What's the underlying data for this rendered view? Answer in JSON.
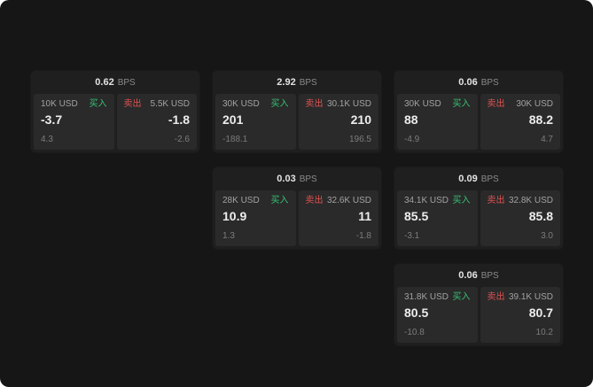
{
  "colors": {
    "background": "#161616",
    "card": "#1f1f1f",
    "panel": "#2a2a2a",
    "buy_accent": "#37c173",
    "sell_accent": "#e05252"
  },
  "cards": [
    {
      "bps": "0.62",
      "bps_label": "BPS",
      "buy": {
        "amount": "10K USD",
        "badge": "买入",
        "value": "-3.7",
        "sub": "4.3"
      },
      "sell": {
        "amount": "5.5K USD",
        "badge": "卖出",
        "value": "-1.8",
        "sub": "-2.6"
      }
    },
    {
      "bps": "2.92",
      "bps_label": "BPS",
      "buy": {
        "amount": "30K USD",
        "badge": "买入",
        "value": "201",
        "sub": "-188.1"
      },
      "sell": {
        "amount": "30.1K USD",
        "badge": "卖出",
        "value": "210",
        "sub": "196.5"
      }
    },
    {
      "bps": "0.06",
      "bps_label": "BPS",
      "buy": {
        "amount": "30K USD",
        "badge": "买入",
        "value": "88",
        "sub": "-4.9"
      },
      "sell": {
        "amount": "30K USD",
        "badge": "卖出",
        "value": "88.2",
        "sub": "4.7"
      }
    },
    {
      "bps": "0.03",
      "bps_label": "BPS",
      "buy": {
        "amount": "28K USD",
        "badge": "买入",
        "value": "10.9",
        "sub": "1.3"
      },
      "sell": {
        "amount": "32.6K USD",
        "badge": "卖出",
        "value": "11",
        "sub": "-1.8"
      }
    },
    {
      "bps": "0.09",
      "bps_label": "BPS",
      "buy": {
        "amount": "34.1K USD",
        "badge": "买入",
        "value": "85.5",
        "sub": "-3.1"
      },
      "sell": {
        "amount": "32.8K USD",
        "badge": "卖出",
        "value": "85.8",
        "sub": "3.0"
      }
    },
    {
      "bps": "0.06",
      "bps_label": "BPS",
      "buy": {
        "amount": "31.8K USD",
        "badge": "买入",
        "value": "80.5",
        "sub": "-10.8"
      },
      "sell": {
        "amount": "39.1K USD",
        "badge": "卖出",
        "value": "80.7",
        "sub": "10.2"
      }
    }
  ]
}
